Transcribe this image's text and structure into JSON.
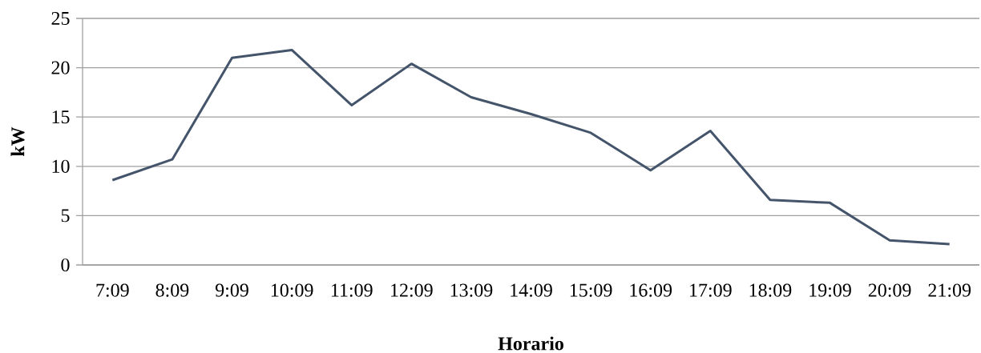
{
  "chart_data": {
    "type": "line",
    "xlabel": "Horario",
    "ylabel": "kW",
    "categories": [
      "7:09",
      "8:09",
      "9:09",
      "10:09",
      "11:09",
      "12:09",
      "13:09",
      "14:09",
      "15:09",
      "16:09",
      "17:09",
      "18:09",
      "19:09",
      "20:09",
      "21:09"
    ],
    "values": [
      8.6,
      10.7,
      21.0,
      21.8,
      16.2,
      20.4,
      17.0,
      15.3,
      13.4,
      9.6,
      13.6,
      6.6,
      6.3,
      2.5,
      2.1
    ],
    "color": "#44546a",
    "ylim": [
      0,
      25
    ],
    "yticks": [
      0,
      5,
      10,
      15,
      20,
      25
    ],
    "grid": "y",
    "line_style": "solid"
  }
}
